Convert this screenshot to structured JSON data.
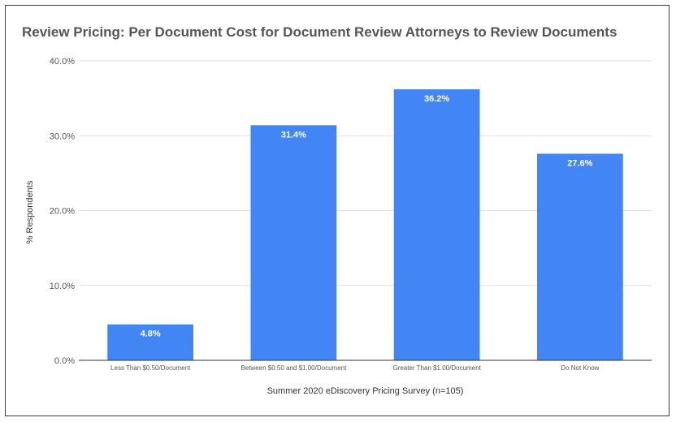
{
  "chart_data": {
    "type": "bar",
    "title": "Review Pricing: Per Document Cost for Document Review Attorneys to Review Documents",
    "xlabel": "Summer 2020 eDiscovery Pricing Survey (n=105)",
    "ylabel": "% Respondents",
    "categories": [
      "Less Than $0.50/Document",
      "Between $0.50 and $1.00/Document",
      "Greater Than $1.00/Document",
      "Do Not Know"
    ],
    "values": [
      4.8,
      31.4,
      36.2,
      27.6
    ],
    "data_labels": [
      "4.8%",
      "31.4%",
      "36.2%",
      "27.6%"
    ],
    "ylim": [
      0,
      40
    ],
    "yticks": [
      0,
      10,
      20,
      30,
      40
    ],
    "ytick_labels": [
      "0.0%",
      "10.0%",
      "20.0%",
      "30.0%",
      "40.0%"
    ],
    "grid": true,
    "bar_color": "#4285f4"
  }
}
